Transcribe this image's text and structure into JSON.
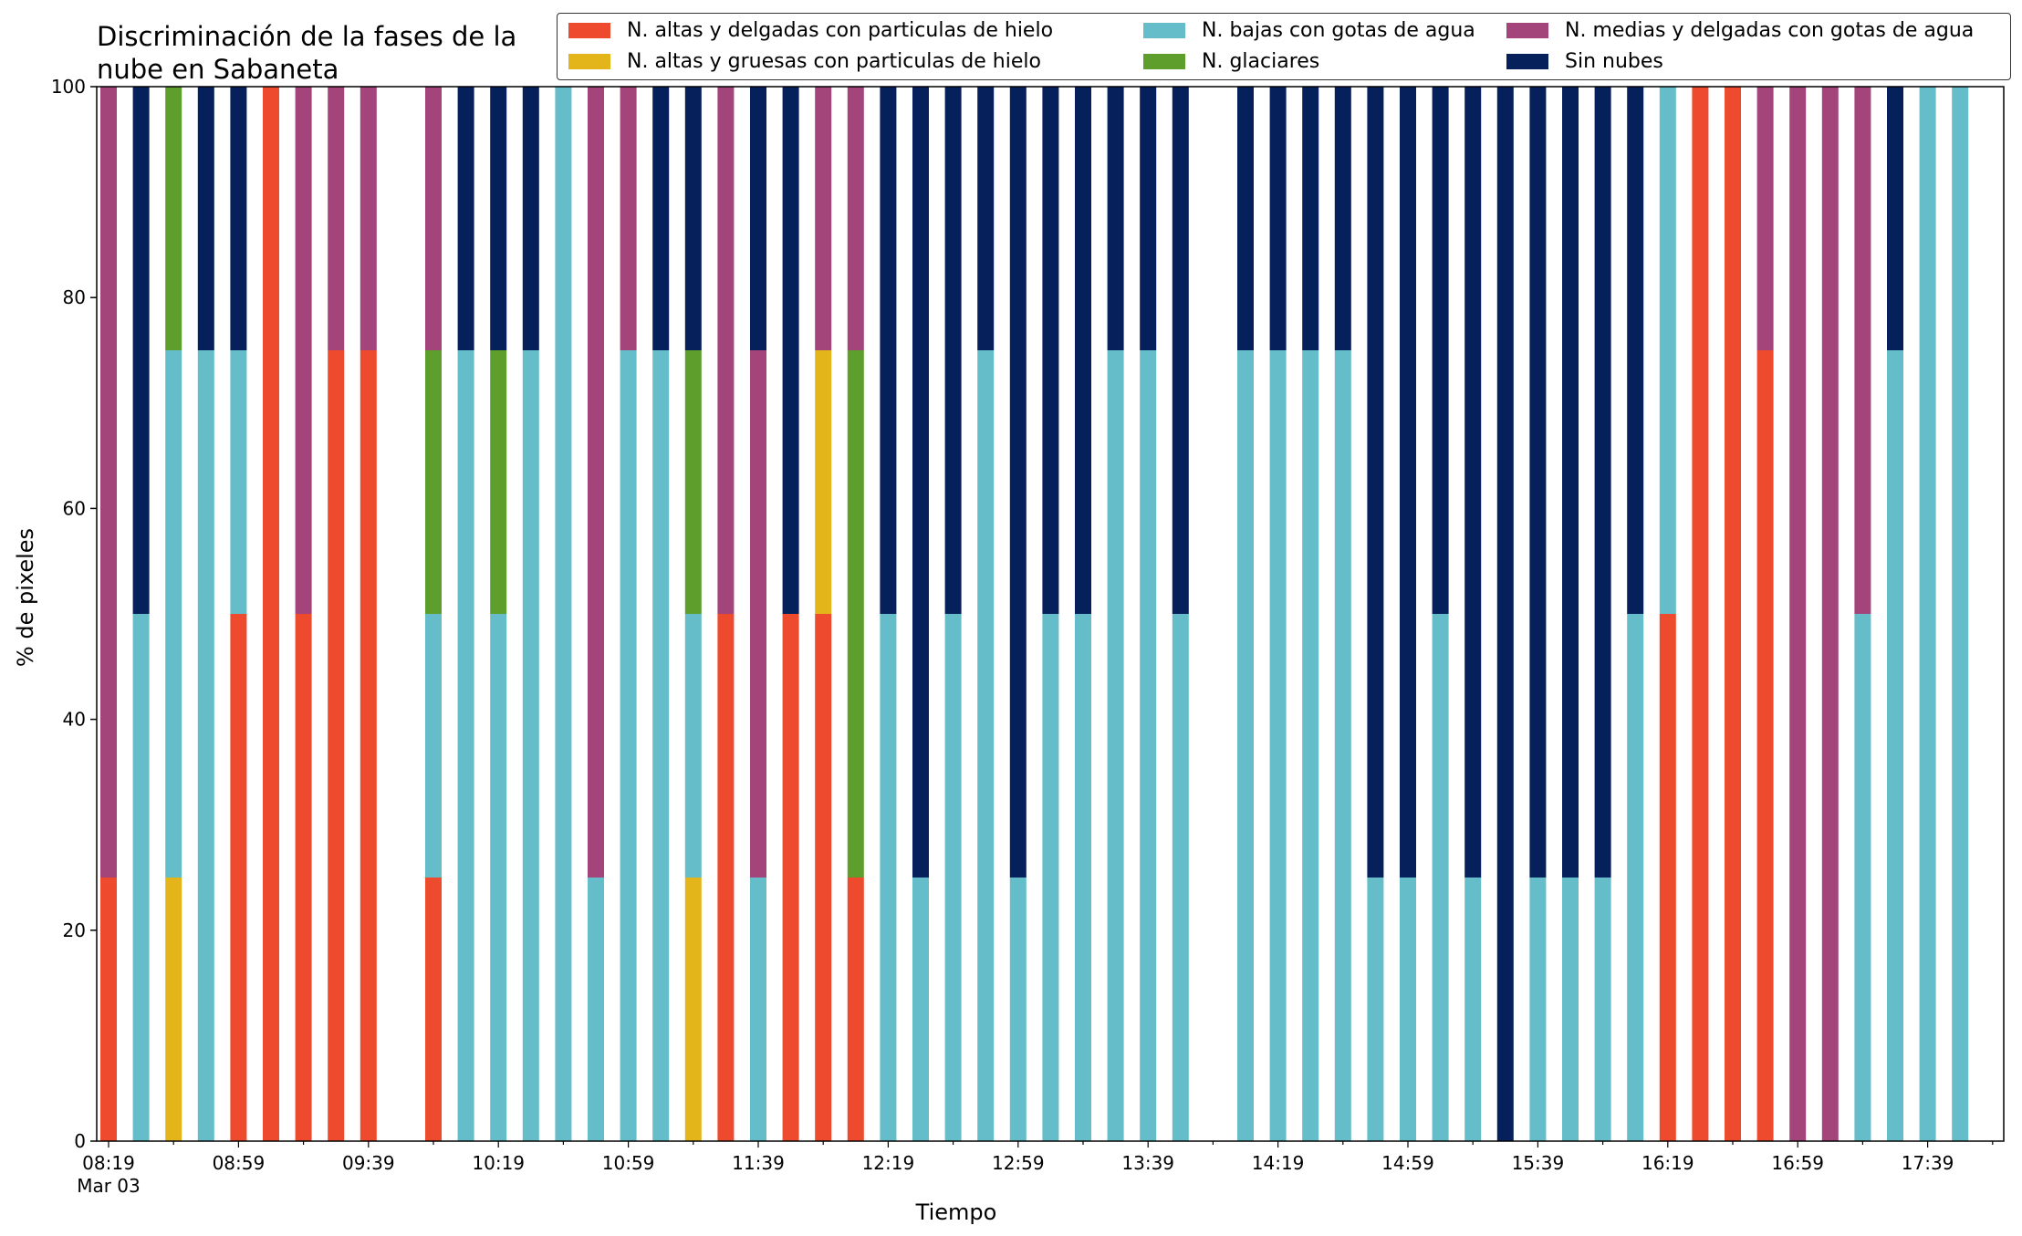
{
  "chart_data": {
    "type": "bar",
    "stacked": true,
    "title": "Discriminación de la fases de la nube en Sabaneta",
    "xlabel": "Tiempo",
    "ylabel": "% de pixeles",
    "ylim": [
      0,
      100
    ],
    "yticks": [
      0,
      20,
      40,
      60,
      80,
      100
    ],
    "legend_position": "top",
    "xtick_labels": [
      "08:19",
      "08:59",
      "09:39",
      "10:19",
      "10:59",
      "11:39",
      "12:19",
      "12:59",
      "13:39",
      "14:19",
      "14:59",
      "15:39",
      "16:19",
      "16:59",
      "17:39"
    ],
    "xtick_label_first_sub": "Mar 03",
    "series_meta": [
      {
        "key": "r",
        "name": "N. altas y delgadas con particulas de hielo",
        "color": "#ee4a2d"
      },
      {
        "key": "y",
        "name": "N. altas y gruesas con particulas de hielo",
        "color": "#e3b51b"
      },
      {
        "key": "c",
        "name": "N. bajas con gotas de agua",
        "color": "#64bdc9"
      },
      {
        "key": "g",
        "name": "N. glaciares",
        "color": "#5d9e2c"
      },
      {
        "key": "p",
        "name": "N. medias y delgadas con gotas de agua",
        "color": "#a3447b"
      },
      {
        "key": "n",
        "name": "Sin nubes",
        "color": "#06205c"
      }
    ],
    "bars": [
      {
        "r": 25,
        "p": 75
      },
      {
        "c": 50,
        "n": 50
      },
      {
        "y": 25,
        "c": 50,
        "g": 25
      },
      {
        "c": 75,
        "n": 25
      },
      {
        "r": 50,
        "c": 25,
        "n": 25
      },
      {
        "r": 100
      },
      {
        "r": 50,
        "p": 50
      },
      {
        "r": 75,
        "p": 25
      },
      {
        "r": 75,
        "p": 25
      },
      null,
      {
        "r": 25,
        "c": 25,
        "g": 25,
        "p": 25
      },
      {
        "c": 75,
        "n": 25
      },
      {
        "c": 50,
        "g": 25,
        "n": 25
      },
      {
        "c": 75,
        "n": 25
      },
      {
        "c": 100
      },
      {
        "c": 25,
        "p": 75
      },
      {
        "c": 75,
        "p": 25
      },
      {
        "c": 75,
        "n": 25
      },
      {
        "y": 25,
        "c": 25,
        "g": 25,
        "n": 25
      },
      {
        "r": 50,
        "p": 50
      },
      {
        "c": 25,
        "p": 50,
        "n": 25
      },
      {
        "r": 50,
        "n": 50
      },
      {
        "r": 50,
        "y": 25,
        "p": 25
      },
      {
        "r": 25,
        "g": 50,
        "p": 25
      },
      {
        "c": 50,
        "n": 50
      },
      {
        "c": 25,
        "n": 75
      },
      {
        "c": 50,
        "n": 50
      },
      {
        "c": 75,
        "n": 25
      },
      {
        "c": 25,
        "n": 75
      },
      {
        "c": 50,
        "n": 50
      },
      {
        "c": 50,
        "n": 50
      },
      {
        "c": 75,
        "n": 25
      },
      {
        "c": 75,
        "n": 25
      },
      {
        "c": 50,
        "n": 50
      },
      null,
      {
        "c": 75,
        "n": 25
      },
      {
        "c": 75,
        "n": 25
      },
      {
        "c": 75,
        "n": 25
      },
      {
        "c": 75,
        "n": 25
      },
      {
        "c": 25,
        "n": 75
      },
      {
        "c": 25,
        "n": 75
      },
      {
        "c": 50,
        "n": 50
      },
      {
        "c": 25,
        "n": 75
      },
      {
        "n": 100
      },
      {
        "c": 25,
        "n": 75
      },
      {
        "c": 25,
        "n": 75
      },
      {
        "c": 25,
        "n": 75
      },
      {
        "c": 50,
        "n": 50
      },
      {
        "r": 50,
        "c": 50
      },
      {
        "r": 100
      },
      {
        "r": 100
      },
      {
        "r": 75,
        "p": 25
      },
      {
        "p": 100
      },
      {
        "p": 100
      },
      {
        "c": 50,
        "p": 50
      },
      {
        "c": 75,
        "n": 25
      },
      {
        "c": 100
      },
      {
        "c": 100
      }
    ]
  }
}
